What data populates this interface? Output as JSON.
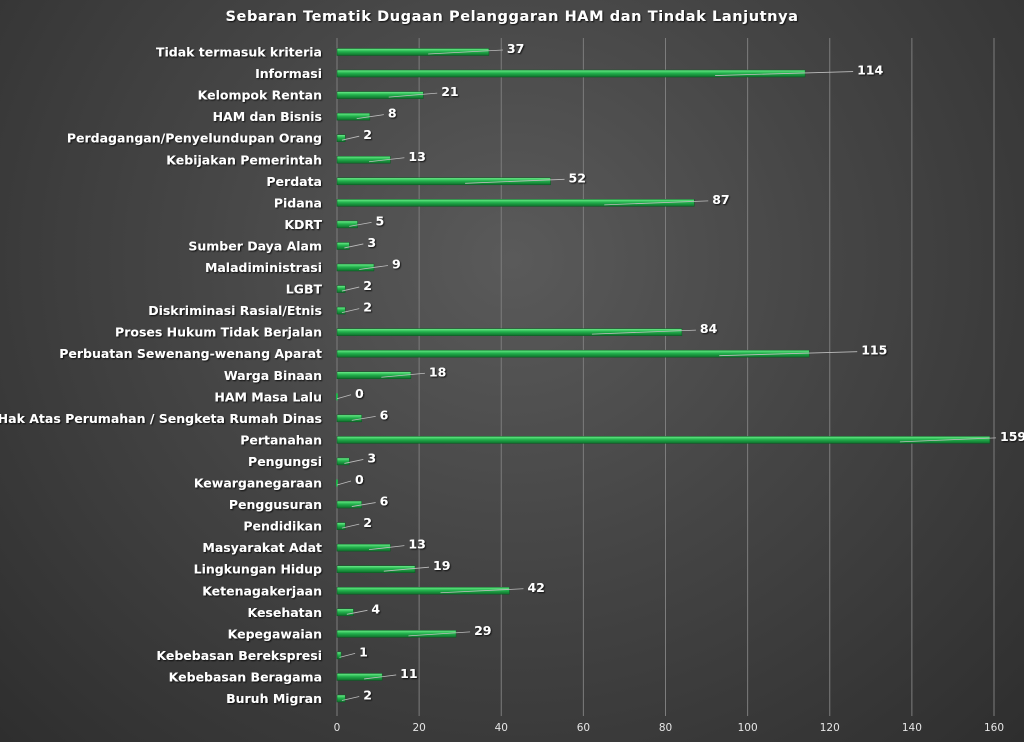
{
  "chart_data": {
    "type": "bar",
    "orientation": "horizontal",
    "title": "Sebaran Tematik Dugaan Pelanggaran HAM dan Tindak Lanjutnya",
    "xlabel": "",
    "ylabel": "",
    "xlim": [
      0,
      160
    ],
    "x_ticks": [
      0,
      20,
      40,
      60,
      80,
      100,
      120,
      140,
      160
    ],
    "grid": true,
    "legend": "none",
    "bar_color": "#22b14c",
    "text_color": "#ffffff",
    "categories": [
      "Tidak termasuk kriteria",
      "Informasi",
      "Kelompok Rentan",
      "HAM dan Bisnis",
      "Perdagangan/Penyelundupan Orang",
      "Kebijakan Pemerintah",
      "Perdata",
      "Pidana",
      "KDRT",
      "Sumber Daya Alam",
      "Maladiministrasi",
      "LGBT",
      "Diskriminasi Rasial/Etnis",
      "Proses Hukum Tidak Berjalan",
      "Perbuatan Sewenang-wenang Aparat",
      "Warga Binaan",
      "HAM Masa Lalu",
      "Hak Atas Perumahan / Sengketa Rumah Dinas",
      "Pertanahan",
      "Pengungsi",
      "Kewarganegaraan",
      "Penggusuran",
      "Pendidikan",
      "Masyarakat Adat",
      "Lingkungan Hidup",
      "Ketenagakerjaan",
      "Kesehatan",
      "Kepegawaian",
      "Kebebasan Berekspresi",
      "Kebebasan Beragama",
      "Buruh Migran"
    ],
    "values": [
      37,
      114,
      21,
      8,
      2,
      13,
      52,
      87,
      5,
      3,
      9,
      2,
      2,
      84,
      115,
      18,
      0,
      6,
      159,
      3,
      0,
      6,
      2,
      13,
      19,
      42,
      4,
      29,
      1,
      11,
      2
    ]
  }
}
